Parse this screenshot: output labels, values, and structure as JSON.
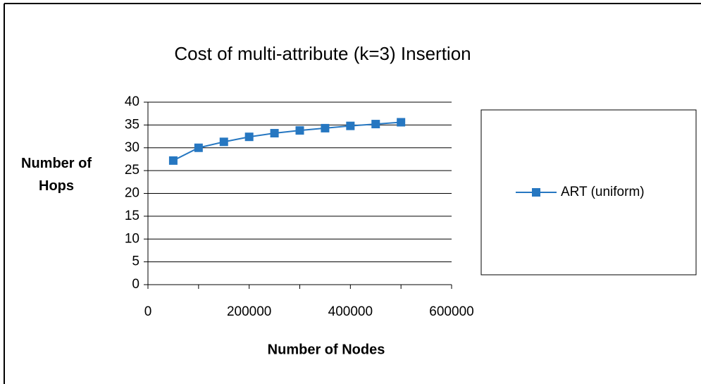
{
  "chart_data": {
    "type": "line",
    "title": "Cost of multi-attribute (k=3) Insertion",
    "xlabel": "Number of Nodes",
    "ylabel": "Number of Hops",
    "x": [
      50000,
      100000,
      150000,
      200000,
      250000,
      300000,
      350000,
      400000,
      450000,
      500000
    ],
    "series": [
      {
        "name": "ART (uniform)",
        "color": "#2677c1",
        "values": [
          27.2,
          30,
          31.3,
          32.4,
          33.2,
          33.8,
          34.3,
          34.8,
          35.2,
          35.6
        ]
      }
    ],
    "xlim": [
      0,
      600000
    ],
    "xticks": [
      0,
      200000,
      400000,
      600000
    ],
    "xminor_ticks": [
      100000,
      300000,
      500000
    ],
    "ylim": [
      0,
      40
    ],
    "yticks": [
      0,
      5,
      10,
      15,
      20,
      25,
      30,
      35,
      40
    ],
    "grid": true,
    "legend": "right"
  }
}
